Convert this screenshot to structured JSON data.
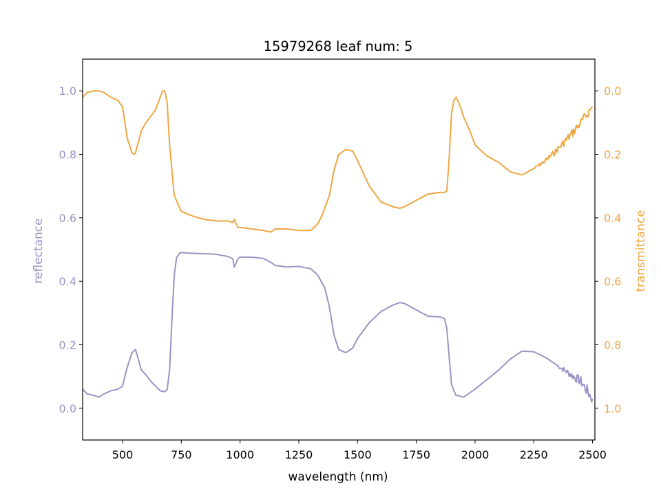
{
  "chart_data": {
    "type": "line",
    "title": "15979268 leaf num: 5",
    "xlabel": "wavelength (nm)",
    "ylabel_left": "reflectance",
    "ylabel_right": "transmittance",
    "xlim": [
      330,
      2510
    ],
    "ylim_left": [
      -0.1,
      1.1
    ],
    "ylim_right": [
      1.1,
      -0.1
    ],
    "right_axis_inverted": true,
    "grid": false,
    "x_ticks": [
      500,
      750,
      1000,
      1250,
      1500,
      1750,
      2000,
      2250,
      2500
    ],
    "x_tick_labels": [
      "500",
      "750",
      "1000",
      "1250",
      "1500",
      "1750",
      "2000",
      "2250",
      "2500"
    ],
    "y_left_ticks": [
      0.0,
      0.2,
      0.4,
      0.6,
      0.8,
      1.0
    ],
    "y_left_tick_labels": [
      "0.0",
      "0.2",
      "0.4",
      "0.6",
      "0.8",
      "1.0"
    ],
    "y_right_ticks": [
      0.0,
      0.2,
      0.4,
      0.6,
      0.8,
      1.0
    ],
    "y_right_tick_labels": [
      "0.0",
      "0.2",
      "0.4",
      "0.6",
      "0.8",
      "1.0"
    ],
    "colors": {
      "reflectance": "#9a92c4",
      "transmittance": "#eea640"
    },
    "series": [
      {
        "name": "reflectance",
        "axis": "left",
        "noisy_from": 2350,
        "x": [
          330,
          350,
          380,
          400,
          420,
          450,
          480,
          500,
          520,
          540,
          555,
          565,
          580,
          600,
          620,
          640,
          660,
          680,
          690,
          700,
          710,
          720,
          730,
          745,
          760,
          800,
          850,
          900,
          950,
          970,
          975,
          985,
          990,
          1000,
          1050,
          1100,
          1130,
          1150,
          1200,
          1250,
          1300,
          1330,
          1360,
          1380,
          1400,
          1420,
          1450,
          1480,
          1500,
          1550,
          1600,
          1650,
          1680,
          1700,
          1750,
          1800,
          1850,
          1870,
          1880,
          1890,
          1900,
          1910,
          1920,
          1930,
          1950,
          1980,
          2000,
          2050,
          2100,
          2150,
          2200,
          2250,
          2300,
          2350,
          2400,
          2450,
          2500
        ],
        "values": [
          0.06,
          0.045,
          0.04,
          0.035,
          0.045,
          0.055,
          0.06,
          0.07,
          0.13,
          0.175,
          0.185,
          0.16,
          0.12,
          0.105,
          0.085,
          0.07,
          0.055,
          0.052,
          0.06,
          0.12,
          0.28,
          0.42,
          0.475,
          0.49,
          0.49,
          0.488,
          0.487,
          0.485,
          0.478,
          0.47,
          0.445,
          0.46,
          0.47,
          0.476,
          0.476,
          0.472,
          0.46,
          0.45,
          0.445,
          0.447,
          0.44,
          0.42,
          0.38,
          0.32,
          0.23,
          0.185,
          0.175,
          0.19,
          0.22,
          0.27,
          0.305,
          0.325,
          0.333,
          0.33,
          0.31,
          0.29,
          0.288,
          0.283,
          0.25,
          0.16,
          0.075,
          0.055,
          0.04,
          0.04,
          0.035,
          0.05,
          0.06,
          0.09,
          0.12,
          0.155,
          0.18,
          0.178,
          0.16,
          0.135,
          0.11,
          0.085,
          0.03
        ]
      },
      {
        "name": "transmittance",
        "axis": "right",
        "noisy_from": 2250,
        "x": [
          330,
          350,
          380,
          400,
          420,
          450,
          480,
          500,
          520,
          540,
          550,
          555,
          560,
          570,
          580,
          600,
          620,
          640,
          660,
          670,
          680,
          690,
          700,
          720,
          750,
          800,
          850,
          900,
          950,
          970,
          975,
          985,
          990,
          1000,
          1050,
          1100,
          1130,
          1150,
          1200,
          1250,
          1300,
          1330,
          1350,
          1380,
          1400,
          1420,
          1450,
          1480,
          1500,
          1550,
          1600,
          1650,
          1680,
          1700,
          1750,
          1800,
          1850,
          1870,
          1880,
          1890,
          1900,
          1910,
          1920,
          1940,
          1950,
          1980,
          2000,
          2050,
          2100,
          2150,
          2200,
          2250,
          2300,
          2350,
          2400,
          2450,
          2500
        ],
        "values": [
          0.02,
          0.005,
          0.0,
          0.0,
          0.005,
          0.02,
          0.03,
          0.05,
          0.15,
          0.195,
          0.2,
          0.195,
          0.18,
          0.155,
          0.125,
          0.1,
          0.08,
          0.06,
          0.02,
          0.0,
          0.0,
          0.04,
          0.17,
          0.33,
          0.38,
          0.395,
          0.405,
          0.41,
          0.41,
          0.415,
          0.405,
          0.42,
          0.43,
          0.43,
          0.435,
          0.44,
          0.445,
          0.435,
          0.435,
          0.44,
          0.44,
          0.42,
          0.39,
          0.33,
          0.25,
          0.2,
          0.185,
          0.19,
          0.22,
          0.3,
          0.35,
          0.365,
          0.37,
          0.365,
          0.345,
          0.325,
          0.32,
          0.32,
          0.315,
          0.21,
          0.07,
          0.03,
          0.02,
          0.055,
          0.08,
          0.13,
          0.17,
          0.205,
          0.225,
          0.255,
          0.265,
          0.245,
          0.22,
          0.185,
          0.145,
          0.1,
          0.05
        ]
      }
    ]
  }
}
